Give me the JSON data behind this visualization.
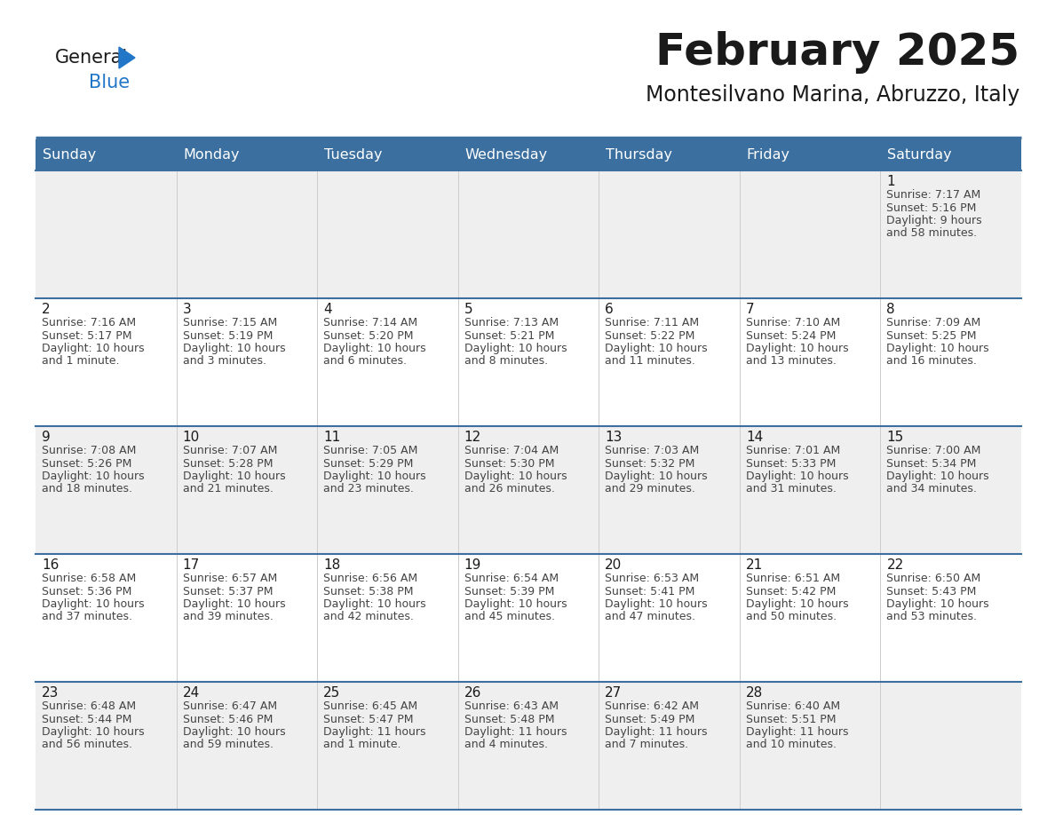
{
  "title": "February 2025",
  "subtitle": "Montesilvano Marina, Abruzzo, Italy",
  "header_bg": "#3a6f9f",
  "header_text": "#ffffff",
  "row_bg_odd": "#efefef",
  "row_bg_even": "#ffffff",
  "separator_color": "#3a6f9f",
  "day_headers": [
    "Sunday",
    "Monday",
    "Tuesday",
    "Wednesday",
    "Thursday",
    "Friday",
    "Saturday"
  ],
  "days": [
    {
      "day": 1,
      "col": 6,
      "row": 0,
      "sunrise": "7:17 AM",
      "sunset": "5:16 PM",
      "daylight": "9 hours and 58 minutes."
    },
    {
      "day": 2,
      "col": 0,
      "row": 1,
      "sunrise": "7:16 AM",
      "sunset": "5:17 PM",
      "daylight": "10 hours and 1 minute."
    },
    {
      "day": 3,
      "col": 1,
      "row": 1,
      "sunrise": "7:15 AM",
      "sunset": "5:19 PM",
      "daylight": "10 hours and 3 minutes."
    },
    {
      "day": 4,
      "col": 2,
      "row": 1,
      "sunrise": "7:14 AM",
      "sunset": "5:20 PM",
      "daylight": "10 hours and 6 minutes."
    },
    {
      "day": 5,
      "col": 3,
      "row": 1,
      "sunrise": "7:13 AM",
      "sunset": "5:21 PM",
      "daylight": "10 hours and 8 minutes."
    },
    {
      "day": 6,
      "col": 4,
      "row": 1,
      "sunrise": "7:11 AM",
      "sunset": "5:22 PM",
      "daylight": "10 hours and 11 minutes."
    },
    {
      "day": 7,
      "col": 5,
      "row": 1,
      "sunrise": "7:10 AM",
      "sunset": "5:24 PM",
      "daylight": "10 hours and 13 minutes."
    },
    {
      "day": 8,
      "col": 6,
      "row": 1,
      "sunrise": "7:09 AM",
      "sunset": "5:25 PM",
      "daylight": "10 hours and 16 minutes."
    },
    {
      "day": 9,
      "col": 0,
      "row": 2,
      "sunrise": "7:08 AM",
      "sunset": "5:26 PM",
      "daylight": "10 hours and 18 minutes."
    },
    {
      "day": 10,
      "col": 1,
      "row": 2,
      "sunrise": "7:07 AM",
      "sunset": "5:28 PM",
      "daylight": "10 hours and 21 minutes."
    },
    {
      "day": 11,
      "col": 2,
      "row": 2,
      "sunrise": "7:05 AM",
      "sunset": "5:29 PM",
      "daylight": "10 hours and 23 minutes."
    },
    {
      "day": 12,
      "col": 3,
      "row": 2,
      "sunrise": "7:04 AM",
      "sunset": "5:30 PM",
      "daylight": "10 hours and 26 minutes."
    },
    {
      "day": 13,
      "col": 4,
      "row": 2,
      "sunrise": "7:03 AM",
      "sunset": "5:32 PM",
      "daylight": "10 hours and 29 minutes."
    },
    {
      "day": 14,
      "col": 5,
      "row": 2,
      "sunrise": "7:01 AM",
      "sunset": "5:33 PM",
      "daylight": "10 hours and 31 minutes."
    },
    {
      "day": 15,
      "col": 6,
      "row": 2,
      "sunrise": "7:00 AM",
      "sunset": "5:34 PM",
      "daylight": "10 hours and 34 minutes."
    },
    {
      "day": 16,
      "col": 0,
      "row": 3,
      "sunrise": "6:58 AM",
      "sunset": "5:36 PM",
      "daylight": "10 hours and 37 minutes."
    },
    {
      "day": 17,
      "col": 1,
      "row": 3,
      "sunrise": "6:57 AM",
      "sunset": "5:37 PM",
      "daylight": "10 hours and 39 minutes."
    },
    {
      "day": 18,
      "col": 2,
      "row": 3,
      "sunrise": "6:56 AM",
      "sunset": "5:38 PM",
      "daylight": "10 hours and 42 minutes."
    },
    {
      "day": 19,
      "col": 3,
      "row": 3,
      "sunrise": "6:54 AM",
      "sunset": "5:39 PM",
      "daylight": "10 hours and 45 minutes."
    },
    {
      "day": 20,
      "col": 4,
      "row": 3,
      "sunrise": "6:53 AM",
      "sunset": "5:41 PM",
      "daylight": "10 hours and 47 minutes."
    },
    {
      "day": 21,
      "col": 5,
      "row": 3,
      "sunrise": "6:51 AM",
      "sunset": "5:42 PM",
      "daylight": "10 hours and 50 minutes."
    },
    {
      "day": 22,
      "col": 6,
      "row": 3,
      "sunrise": "6:50 AM",
      "sunset": "5:43 PM",
      "daylight": "10 hours and 53 minutes."
    },
    {
      "day": 23,
      "col": 0,
      "row": 4,
      "sunrise": "6:48 AM",
      "sunset": "5:44 PM",
      "daylight": "10 hours and 56 minutes."
    },
    {
      "day": 24,
      "col": 1,
      "row": 4,
      "sunrise": "6:47 AM",
      "sunset": "5:46 PM",
      "daylight": "10 hours and 59 minutes."
    },
    {
      "day": 25,
      "col": 2,
      "row": 4,
      "sunrise": "6:45 AM",
      "sunset": "5:47 PM",
      "daylight": "11 hours and 1 minute."
    },
    {
      "day": 26,
      "col": 3,
      "row": 4,
      "sunrise": "6:43 AM",
      "sunset": "5:48 PM",
      "daylight": "11 hours and 4 minutes."
    },
    {
      "day": 27,
      "col": 4,
      "row": 4,
      "sunrise": "6:42 AM",
      "sunset": "5:49 PM",
      "daylight": "11 hours and 7 minutes."
    },
    {
      "day": 28,
      "col": 5,
      "row": 4,
      "sunrise": "6:40 AM",
      "sunset": "5:51 PM",
      "daylight": "11 hours and 10 minutes."
    }
  ],
  "num_rows": 5,
  "num_cols": 7,
  "logo_text_general": "General",
  "logo_text_blue": "Blue",
  "logo_color_general": "#1a1a1a",
  "logo_color_blue": "#2176c7",
  "logo_triangle_color": "#2176c7",
  "fig_width": 11.88,
  "fig_height": 9.18,
  "dpi": 100
}
